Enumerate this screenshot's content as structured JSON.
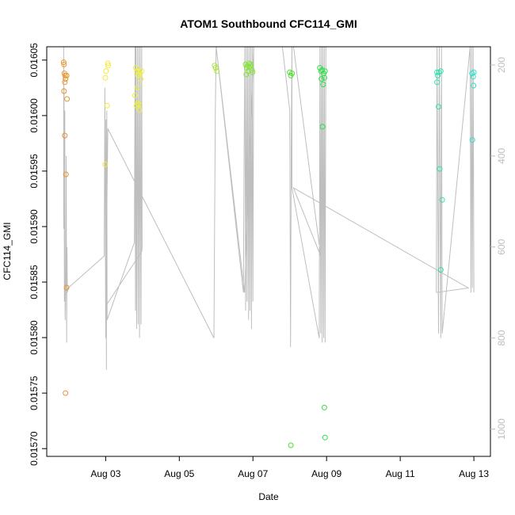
{
  "chart_data": {
    "type": "scatter",
    "title": "ATOM1 Southbound CFC114_GMI",
    "xlabel": "Date",
    "ylabel": "CFC114_GMI",
    "x_ticks": [
      "Aug 03",
      "Aug 05",
      "Aug 07",
      "Aug 09",
      "Aug 11",
      "Aug 13"
    ],
    "x_tick_days": [
      3,
      5,
      7,
      9,
      11,
      13
    ],
    "xlim_days": [
      1.4,
      13.45
    ],
    "ylim": [
      0.015693,
      0.016062
    ],
    "y_ticks": [
      0.0157,
      0.01575,
      0.0158,
      0.01585,
      0.0159,
      0.01595,
      0.016,
      0.01605
    ],
    "y_tick_labels": [
      "0.01570",
      "0.01575",
      "0.01580",
      "0.01585",
      "0.01590",
      "0.01595",
      "0.01600",
      "0.01605"
    ],
    "right_axis": {
      "label": "",
      "ticks": [
        200,
        400,
        600,
        800,
        1000
      ],
      "tick_labels": [
        "200",
        "400",
        "600",
        "800",
        "1000"
      ],
      "lim": [
        1060,
        160
      ],
      "color": "#bebebe"
    },
    "grid": false,
    "legend": "none",
    "point_color_gradient": [
      "#e8962b",
      "#f2d63a",
      "#eef03a",
      "#9be63a",
      "#5ce02e",
      "#2ee05a",
      "#2ee0b4",
      "#2ee0d2"
    ],
    "series": [
      {
        "points": [
          {
            "day": 1.86,
            "y": 0.016048,
            "c": "#e8962b"
          },
          {
            "day": 1.87,
            "y": 0.016046,
            "c": "#e8962b"
          },
          {
            "day": 1.88,
            "y": 0.016038,
            "c": "#e8962b"
          },
          {
            "day": 1.89,
            "y": 0.01603,
            "c": "#e8962b"
          },
          {
            "day": 1.9,
            "y": 0.016036,
            "c": "#e8962b"
          },
          {
            "day": 1.87,
            "y": 0.016022,
            "c": "#e8962b"
          },
          {
            "day": 1.91,
            "y": 0.016033,
            "c": "#e8962b"
          },
          {
            "day": 1.94,
            "y": 0.016036,
            "c": "#e8962b"
          },
          {
            "day": 1.95,
            "y": 0.016015,
            "c": "#e8962b"
          },
          {
            "day": 1.89,
            "y": 0.015982,
            "c": "#e8962b"
          },
          {
            "day": 1.92,
            "y": 0.015947,
            "c": "#e8962b"
          },
          {
            "day": 1.94,
            "y": 0.015845,
            "c": "#e8962b"
          },
          {
            "day": 1.91,
            "y": 0.01575,
            "c": "#e8962b"
          },
          {
            "day": 2.99,
            "y": 0.016034,
            "c": "#f2e83a"
          },
          {
            "day": 3.01,
            "y": 0.01604,
            "c": "#f2e83a"
          },
          {
            "day": 3.06,
            "y": 0.016047,
            "c": "#f2e83a"
          },
          {
            "day": 3.07,
            "y": 0.016045,
            "c": "#f2e83a"
          },
          {
            "day": 3.04,
            "y": 0.016009,
            "c": "#f2e83a"
          },
          {
            "day": 2.99,
            "y": 0.015956,
            "c": "#f2e83a"
          },
          {
            "day": 3.82,
            "y": 0.016043,
            "c": "#eef03a"
          },
          {
            "day": 3.85,
            "y": 0.01604,
            "c": "#eef03a"
          },
          {
            "day": 3.88,
            "y": 0.016036,
            "c": "#eef03a"
          },
          {
            "day": 3.9,
            "y": 0.01604,
            "c": "#eef03a"
          },
          {
            "day": 3.93,
            "y": 0.016038,
            "c": "#eef03a"
          },
          {
            "day": 3.95,
            "y": 0.016033,
            "c": "#eef03a"
          },
          {
            "day": 3.98,
            "y": 0.01604,
            "c": "#eef03a"
          },
          {
            "day": 3.86,
            "y": 0.016025,
            "c": "#eef03a"
          },
          {
            "day": 3.8,
            "y": 0.016018,
            "c": "#eef03a"
          },
          {
            "day": 3.87,
            "y": 0.016011,
            "c": "#eef03a"
          },
          {
            "day": 3.84,
            "y": 0.016009,
            "c": "#eef03a"
          },
          {
            "day": 3.9,
            "y": 0.01601,
            "c": "#eef03a"
          },
          {
            "day": 3.92,
            "y": 0.016005,
            "c": "#eef03a"
          },
          {
            "day": 5.96,
            "y": 0.016045,
            "c": "#a8e63a"
          },
          {
            "day": 5.99,
            "y": 0.016043,
            "c": "#a8e63a"
          },
          {
            "day": 6.02,
            "y": 0.01604,
            "c": "#a8e63a"
          },
          {
            "day": 6.8,
            "y": 0.016046,
            "c": "#86e43a"
          },
          {
            "day": 6.83,
            "y": 0.016043,
            "c": "#86e43a"
          },
          {
            "day": 6.86,
            "y": 0.016045,
            "c": "#86e43a"
          },
          {
            "day": 6.88,
            "y": 0.01604,
            "c": "#86e43a"
          },
          {
            "day": 6.9,
            "y": 0.016047,
            "c": "#86e43a"
          },
          {
            "day": 6.92,
            "y": 0.016044,
            "c": "#86e43a"
          },
          {
            "day": 6.95,
            "y": 0.016046,
            "c": "#86e43a"
          },
          {
            "day": 6.97,
            "y": 0.016041,
            "c": "#86e43a"
          },
          {
            "day": 6.82,
            "y": 0.016037,
            "c": "#86e43a"
          },
          {
            "day": 6.99,
            "y": 0.016039,
            "c": "#86e43a"
          },
          {
            "day": 8.0,
            "y": 0.016039,
            "c": "#4ee02e"
          },
          {
            "day": 8.03,
            "y": 0.016036,
            "c": "#4ee02e"
          },
          {
            "day": 8.06,
            "y": 0.016038,
            "c": "#4ee02e"
          },
          {
            "day": 8.03,
            "y": 0.015703,
            "c": "#4ee02e"
          },
          {
            "day": 8.82,
            "y": 0.016043,
            "c": "#2ee04a"
          },
          {
            "day": 8.85,
            "y": 0.01604,
            "c": "#2ee04a"
          },
          {
            "day": 8.88,
            "y": 0.016041,
            "c": "#2ee04a"
          },
          {
            "day": 8.92,
            "y": 0.016038,
            "c": "#2ee04a"
          },
          {
            "day": 8.96,
            "y": 0.01604,
            "c": "#2ee04a"
          },
          {
            "day": 8.86,
            "y": 0.016033,
            "c": "#2ee04a"
          },
          {
            "day": 8.94,
            "y": 0.016034,
            "c": "#2ee04a"
          },
          {
            "day": 8.91,
            "y": 0.016028,
            "c": "#2ee04a"
          },
          {
            "day": 8.89,
            "y": 0.01599,
            "c": "#2ee04a"
          },
          {
            "day": 8.94,
            "y": 0.015737,
            "c": "#2ee04a"
          },
          {
            "day": 8.96,
            "y": 0.01571,
            "c": "#2ee04a"
          },
          {
            "day": 12.0,
            "y": 0.016039,
            "c": "#2ee0b0"
          },
          {
            "day": 12.05,
            "y": 0.016039,
            "c": "#2ee0b0"
          },
          {
            "day": 12.1,
            "y": 0.01604,
            "c": "#2ee0b0"
          },
          {
            "day": 12.02,
            "y": 0.016036,
            "c": "#2ee0b0"
          },
          {
            "day": 12.0,
            "y": 0.01603,
            "c": "#2ee0b0"
          },
          {
            "day": 12.04,
            "y": 0.016008,
            "c": "#2ee0b0"
          },
          {
            "day": 12.07,
            "y": 0.015952,
            "c": "#2ee0b0"
          },
          {
            "day": 12.14,
            "y": 0.015924,
            "c": "#2ee0b0"
          },
          {
            "day": 12.1,
            "y": 0.015861,
            "c": "#2ee0b0"
          },
          {
            "day": 12.95,
            "y": 0.016038,
            "c": "#2ee0cc"
          },
          {
            "day": 13.0,
            "y": 0.016039,
            "c": "#2ee0cc"
          },
          {
            "day": 12.98,
            "y": 0.016035,
            "c": "#2ee0cc"
          },
          {
            "day": 12.99,
            "y": 0.016027,
            "c": "#2ee0cc"
          },
          {
            "day": 12.96,
            "y": 0.015978,
            "c": "#2ee0cc"
          }
        ]
      }
    ],
    "altitude_trace": [
      [
        1.86,
        160
      ],
      [
        1.86,
        560
      ],
      [
        1.87,
        250
      ],
      [
        1.88,
        720
      ],
      [
        1.89,
        300
      ],
      [
        1.9,
        760
      ],
      [
        1.92,
        650
      ],
      [
        1.93,
        400
      ],
      [
        1.94,
        810
      ],
      [
        1.95,
        600
      ],
      [
        1.96,
        700
      ],
      [
        1.98,
        690
      ],
      [
        2.96,
        620
      ],
      [
        2.98,
        250
      ],
      [
        3.0,
        800
      ],
      [
        3.01,
        320
      ],
      [
        3.02,
        870
      ],
      [
        3.03,
        300
      ],
      [
        3.04,
        760
      ],
      [
        3.78,
        590
      ],
      [
        3.8,
        160
      ],
      [
        3.81,
        740
      ],
      [
        3.82,
        160
      ],
      [
        3.84,
        780
      ],
      [
        3.86,
        160
      ],
      [
        3.88,
        770
      ],
      [
        3.9,
        160
      ],
      [
        3.92,
        800
      ],
      [
        3.94,
        160
      ],
      [
        3.96,
        770
      ],
      [
        3.98,
        160
      ],
      [
        3.99,
        600
      ],
      [
        3.98,
        610
      ],
      [
        3.0,
        730
      ],
      [
        3.06,
        340
      ],
      [
        5.94,
        800
      ],
      [
        5.96,
        540
      ],
      [
        5.98,
        300
      ],
      [
        6.0,
        160
      ],
      [
        6.74,
        700
      ],
      [
        6.76,
        400
      ],
      [
        6.78,
        160
      ],
      [
        6.8,
        740
      ],
      [
        6.82,
        160
      ],
      [
        6.84,
        720
      ],
      [
        6.86,
        160
      ],
      [
        6.88,
        760
      ],
      [
        6.9,
        160
      ],
      [
        6.92,
        740
      ],
      [
        6.94,
        160
      ],
      [
        6.96,
        780
      ],
      [
        6.98,
        160
      ],
      [
        7.0,
        720
      ],
      [
        7.02,
        160
      ],
      [
        6.77,
        700
      ],
      [
        6.0,
        160
      ],
      [
        7.0,
        160
      ],
      [
        7.8,
        160
      ],
      [
        8.0,
        300
      ],
      [
        8.02,
        820
      ],
      [
        8.04,
        380
      ],
      [
        8.06,
        160
      ],
      [
        8.06,
        470
      ],
      [
        8.8,
        800
      ],
      [
        8.82,
        160
      ],
      [
        8.84,
        790
      ],
      [
        8.86,
        160
      ],
      [
        8.88,
        810
      ],
      [
        8.9,
        160
      ],
      [
        8.92,
        800
      ],
      [
        8.94,
        160
      ],
      [
        8.96,
        810
      ],
      [
        8.98,
        160
      ],
      [
        8.1,
        160
      ],
      [
        8.84,
        620
      ],
      [
        8.1,
        470
      ],
      [
        12.85,
        690
      ],
      [
        11.98,
        700
      ],
      [
        12.0,
        160
      ],
      [
        12.04,
        790
      ],
      [
        12.06,
        160
      ],
      [
        12.1,
        800
      ],
      [
        12.12,
        160
      ],
      [
        12.14,
        790
      ],
      [
        12.9,
        160
      ],
      [
        12.92,
        700
      ],
      [
        12.94,
        160
      ],
      [
        12.96,
        690
      ],
      [
        12.98,
        160
      ],
      [
        13.0,
        700
      ]
    ]
  }
}
